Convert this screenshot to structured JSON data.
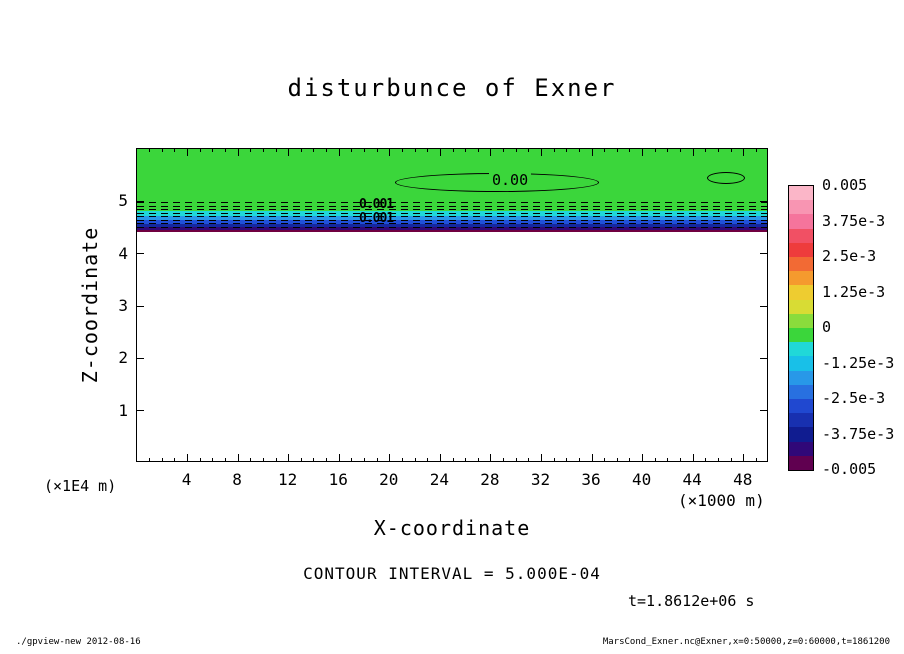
{
  "title": "disturbunce of Exner",
  "axes": {
    "x_label": "X-coordinate",
    "y_label": "Z-coordinate",
    "x_unit": "(×1000 m)",
    "y_unit": "(×1E4 m)",
    "x_ticks": [
      4,
      8,
      12,
      16,
      20,
      24,
      28,
      32,
      36,
      40,
      44,
      48
    ],
    "y_ticks": [
      1,
      2,
      3,
      4,
      5
    ]
  },
  "plot": {
    "fill_top_color": "#3BD63B",
    "band_colors": [
      "#20D8D8",
      "#2898E8",
      "#2050D8",
      "#1428A0",
      "#300878",
      "#700040"
    ],
    "contour_zero_label": "0.00",
    "band_labels": [
      "0.001",
      "0.001"
    ]
  },
  "colorbar": {
    "labels": [
      "0.005",
      "3.75e-3",
      "2.5e-3",
      "1.25e-3",
      "0",
      "-1.25e-3",
      "-2.5e-3",
      "-3.75e-3",
      "-0.005"
    ],
    "colors": [
      "#FBB6C8",
      "#F895B2",
      "#F5749C",
      "#F15064",
      "#EE3C3C",
      "#F26A34",
      "#F59A2E",
      "#EECC30",
      "#D8DC34",
      "#8ADC3C",
      "#3BD63B",
      "#20D8D8",
      "#18C0E8",
      "#2898E8",
      "#2870E0",
      "#2048D0",
      "#1830B0",
      "#101C90",
      "#300878",
      "#600050"
    ]
  },
  "captions": {
    "contour_interval": "CONTOUR INTERVAL = 5.000E-04",
    "time": "t=1.8612e+06 s"
  },
  "footer": {
    "left": "./gpview-new  2012-08-16",
    "right": "MarsCond_Exner.nc@Exner,x=0:50000,z=0:60000,t=1861200"
  },
  "chart_data": {
    "type": "heatmap",
    "title": "disturbunce of Exner",
    "xlabel": "X-coordinate (×1000 m)",
    "ylabel": "Z-coordinate (×1E4 m)",
    "xlim": [
      0,
      50
    ],
    "ylim": [
      0,
      6
    ],
    "contour_interval": 0.0005,
    "labeled_levels": [
      0.005,
      0.00375,
      0.0025,
      0.00125,
      0,
      -0.00125,
      -0.0025,
      -0.00375,
      -0.005
    ],
    "time_seconds": "1.8612e+06",
    "features": [
      {
        "region": "z ≈ 4.9 to 6.0, all x",
        "value": "≈ 0 to -5e-4",
        "appearance": "uniform green shading"
      },
      {
        "region": "z ≈ 4.45 to 4.9, all x",
        "value": "steep negative gradient from ≈0 down to ≈ -0.005",
        "appearance": "thin stacked bands green→cyan→blue→dark blue→purple with dense dashed negative contours"
      },
      {
        "region": "z < 4.45",
        "value": "no shading (blank)",
        "appearance": "white"
      },
      {
        "feature": "closed 0.00 contour",
        "location": "x ≈ 20-36, z ≈ 5.4-5.7",
        "label": "0.00"
      },
      {
        "feature": "small closed 0.00 contour",
        "location": "x ≈ 45-48, z ≈ 5.4-5.6"
      },
      {
        "feature": "contour labels in gradient band",
        "location": "x ≈ 18-21, z ≈ 4.6-4.8",
        "labels": [
          "0.001",
          "0.001"
        ]
      }
    ]
  }
}
